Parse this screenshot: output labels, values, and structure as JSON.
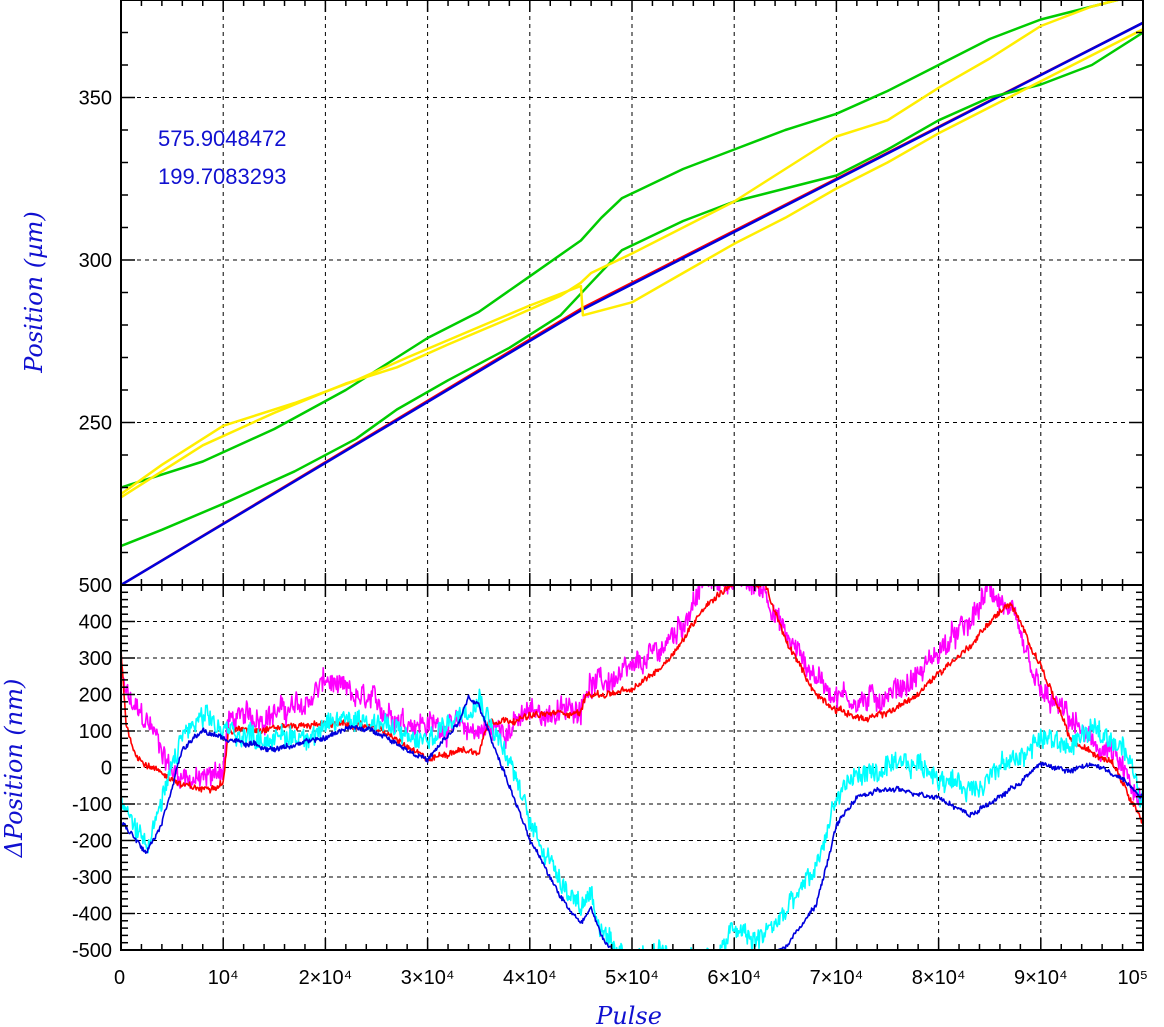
{
  "chart_data": [
    {
      "type": "line",
      "panel": "top",
      "ylabel": "Position (µm)",
      "xlim": [
        0,
        100000
      ],
      "ylim": [
        200,
        380
      ],
      "x_ticks": [
        10000,
        20000,
        30000,
        40000,
        50000,
        60000,
        70000,
        80000,
        90000
      ],
      "y_ticks": [
        250,
        300,
        350
      ],
      "y_tick_labels": [
        "250",
        "300",
        "350"
      ],
      "grid": true,
      "annotations": [
        "575.9048472",
        "199.7083293"
      ],
      "series": [
        {
          "color": "#ff0000",
          "x": [
            0,
            45000,
            100000
          ],
          "y": [
            200,
            285,
            373
          ]
        },
        {
          "color": "#0000dd",
          "x": [
            0,
            45000,
            100000
          ],
          "y": [
            200,
            284.5,
            373
          ]
        },
        {
          "color": "#00cc00",
          "x": [
            0,
            3000,
            8000,
            15000,
            22000,
            27000,
            30000,
            35000,
            40000,
            45000,
            47000,
            49000,
            55000,
            60000,
            65000,
            70000,
            75000,
            80000,
            85000,
            90000,
            95000,
            100000
          ],
          "y": [
            230,
            233,
            238,
            248,
            260,
            270,
            276,
            284,
            295,
            306,
            313,
            319,
            328,
            334,
            340,
            345,
            352,
            360,
            368,
            374,
            378,
            382
          ]
        },
        {
          "color": "#00cc00",
          "x": [
            0,
            4000,
            10000,
            17000,
            23000,
            27000,
            32000,
            38000,
            43000,
            46000,
            49000,
            55000,
            60000,
            65000,
            70000,
            75000,
            80000,
            85000,
            90000,
            95000,
            100000
          ],
          "y": [
            212,
            217,
            225,
            235,
            245,
            254,
            263,
            273,
            283,
            293,
            303,
            312,
            318,
            322,
            326,
            334,
            343,
            350,
            354,
            360,
            370
          ]
        },
        {
          "color": "#ffee00",
          "x": [
            0,
            3000,
            8000,
            15000,
            22000,
            27000,
            32000,
            38000,
            43000,
            45000,
            46000,
            50000,
            55000,
            60000,
            65000,
            70000,
            75000,
            80000,
            85000,
            90000,
            95000,
            100000
          ],
          "y": [
            227,
            233,
            243,
            253,
            262,
            267,
            274,
            282,
            289,
            293,
            296,
            302,
            310,
            318,
            328,
            338,
            343,
            353,
            362,
            372,
            378,
            382
          ]
        },
        {
          "color": "#ffee00",
          "x": [
            0,
            4000,
            10000,
            17000,
            23000,
            28000,
            34000,
            40000,
            45000,
            45200,
            50000,
            55000,
            60000,
            65000,
            70000,
            75000,
            80000,
            85000,
            90000,
            95000,
            100000
          ],
          "y": [
            228,
            237,
            249,
            256,
            263,
            270,
            278,
            286,
            292,
            283,
            287,
            296,
            305,
            313,
            322,
            330,
            339,
            347,
            355,
            363,
            371
          ]
        }
      ]
    },
    {
      "type": "line",
      "panel": "bottom",
      "xlabel": "Pulse",
      "ylabel": "ΔPosition (nm)",
      "xlim": [
        0,
        100000
      ],
      "ylim": [
        -500,
        500
      ],
      "x_ticks": [
        0,
        10000,
        20000,
        30000,
        40000,
        50000,
        60000,
        70000,
        80000,
        90000,
        100000
      ],
      "x_tick_labels": [
        "0",
        "10⁴",
        "2×10⁴",
        "3×10⁴",
        "4×10⁴",
        "5×10⁴",
        "6×10⁴",
        "7×10⁴",
        "8×10⁴",
        "9×10⁴",
        "10⁵"
      ],
      "y_ticks": [
        -500,
        -400,
        -300,
        -200,
        -100,
        0,
        100,
        200,
        300,
        400,
        500
      ],
      "y_tick_labels": [
        "-500",
        "-400",
        "-300",
        "-200",
        "-100",
        "0",
        "100",
        "200",
        "300",
        "400",
        "500"
      ],
      "grid": true,
      "series": [
        {
          "color": "#ff00ff",
          "noise": 55,
          "x": [
            0,
            1000,
            3000,
            5000,
            8000,
            10000,
            10500,
            11000,
            15000,
            18000,
            20000,
            22000,
            25000,
            28000,
            30000,
            33000,
            35000,
            38000,
            40000,
            43000,
            45000,
            45500,
            47000,
            50000,
            53000,
            55000,
            57000,
            60000,
            63000,
            65000,
            68000,
            70000,
            73000,
            75000,
            78000,
            80000,
            83000,
            85000,
            87000,
            90000,
            93000,
            95000,
            97000,
            100000
          ],
          "y": [
            240,
            170,
            110,
            -10,
            -40,
            0,
            130,
            130,
            150,
            170,
            240,
            200,
            170,
            130,
            120,
            110,
            100,
            110,
            150,
            150,
            170,
            230,
            230,
            260,
            330,
            400,
            510,
            520,
            490,
            360,
            250,
            200,
            180,
            200,
            250,
            320,
            390,
            490,
            420,
            200,
            130,
            60,
            40,
            -120
          ]
        },
        {
          "color": "#ff0000",
          "noise": 15,
          "x": [
            0,
            500,
            1500,
            3000,
            5000,
            6000,
            8000,
            10000,
            10500,
            15000,
            20000,
            25000,
            30000,
            33000,
            35000,
            36000,
            38000,
            40000,
            43000,
            45000,
            45500,
            47000,
            50000,
            53000,
            55000,
            57000,
            60000,
            63000,
            65000,
            68000,
            70000,
            73000,
            75000,
            78000,
            80000,
            83000,
            85000,
            87000,
            90000,
            93000,
            95000,
            97000,
            100000
          ],
          "y": [
            320,
            120,
            30,
            0,
            -30,
            -50,
            -60,
            -40,
            100,
            110,
            120,
            110,
            20,
            50,
            40,
            130,
            130,
            140,
            150,
            150,
            200,
            200,
            210,
            280,
            350,
            440,
            510,
            500,
            350,
            200,
            160,
            130,
            150,
            200,
            260,
            330,
            400,
            450,
            280,
            70,
            40,
            20,
            -150
          ]
        },
        {
          "color": "#00ffff",
          "noise": 50,
          "x": [
            0,
            1000,
            2500,
            4000,
            6000,
            8000,
            10000,
            15000,
            20000,
            22000,
            25000,
            28000,
            30000,
            33000,
            35000,
            38000,
            40000,
            43000,
            45000,
            46000,
            47000,
            48000,
            48500,
            58500,
            60000,
            62000,
            65000,
            68000,
            70000,
            72000,
            75000,
            78000,
            80000,
            83000,
            85000,
            88000,
            90000,
            93000,
            95000,
            98000,
            100000
          ],
          "y": [
            -100,
            -150,
            -200,
            -100,
            90,
            130,
            100,
            80,
            100,
            140,
            130,
            80,
            70,
            150,
            200,
            20,
            -150,
            -300,
            -380,
            -330,
            -450,
            -500,
            -520,
            -520,
            -440,
            -480,
            -400,
            -280,
            -80,
            -20,
            -10,
            10,
            -20,
            -60,
            -20,
            30,
            80,
            60,
            100,
            70,
            -100
          ]
        },
        {
          "color": "#0000dd",
          "noise": 12,
          "x": [
            0,
            1000,
            2500,
            4000,
            6000,
            8000,
            10000,
            15000,
            20000,
            22000,
            25000,
            28000,
            30000,
            33000,
            34000,
            35000,
            38000,
            40000,
            43000,
            45000,
            46000,
            47000,
            48000,
            48500,
            63000,
            65000,
            68000,
            70000,
            72000,
            75000,
            78000,
            80000,
            83000,
            85000,
            88000,
            90000,
            93000,
            95000,
            98000,
            100000
          ],
          "y": [
            -150,
            -180,
            -230,
            -150,
            50,
            100,
            80,
            50,
            80,
            110,
            100,
            50,
            20,
            120,
            190,
            170,
            -50,
            -200,
            -350,
            -430,
            -380,
            -460,
            -500,
            -520,
            -520,
            -490,
            -380,
            -160,
            -80,
            -60,
            -70,
            -80,
            -130,
            -100,
            -40,
            10,
            -10,
            10,
            -30,
            -80
          ]
        }
      ]
    }
  ]
}
